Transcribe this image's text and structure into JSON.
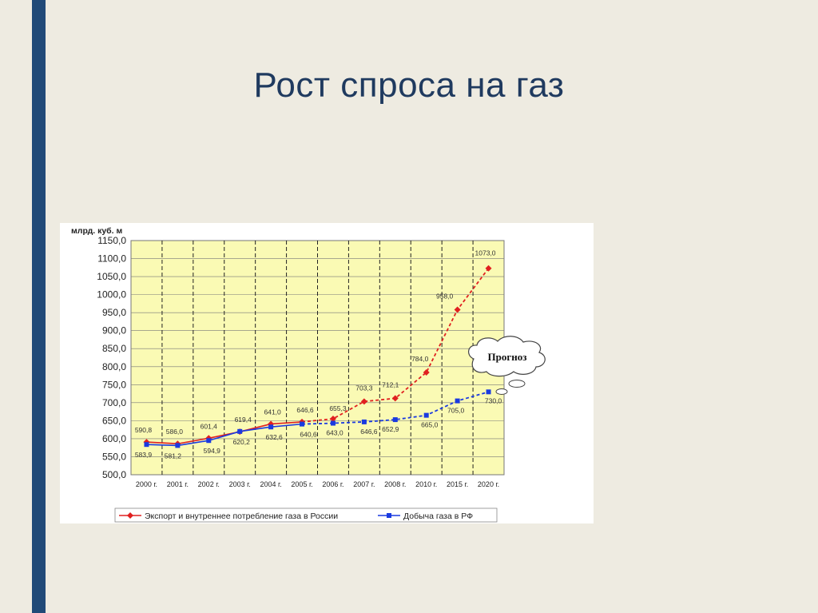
{
  "slide": {
    "title": "Рост спроса на газ"
  },
  "colors": {
    "accent_bar": "#214a78",
    "plot_bg": "#fafab4",
    "series1": "#e02020",
    "series2": "#1a3ae0"
  },
  "chart_data": {
    "type": "line",
    "ylabel": "млрд. куб. м",
    "ylim": [
      500,
      1150
    ],
    "yticks": [
      "500,0",
      "550,0",
      "600,0",
      "650,0",
      "700,0",
      "750,0",
      "800,0",
      "850,0",
      "900,0",
      "950,0",
      "1000,0",
      "1050,0",
      "1100,0",
      "1150,0"
    ],
    "categories": [
      "2000 г.",
      "2001 г.",
      "2002 г.",
      "2003 г.",
      "2004 г.",
      "2005 г.",
      "2006 г.",
      "2007 г.",
      "2008 г.",
      "2010 г.",
      "2015 г.",
      "2020 г."
    ],
    "forecast_start_index": 6,
    "annotation": "Прогноз",
    "legend_position": "bottom",
    "series": [
      {
        "name": "Экспорт и внутреннее потребление газа в России",
        "color": "#e02020",
        "marker": "diamond",
        "values": [
          590.8,
          586.0,
          601.4,
          619.4,
          641.0,
          646.6,
          655.3,
          703.3,
          712.1,
          784.0,
          958.0,
          1073.0
        ],
        "labels": [
          "590,8",
          "586,0",
          "601,4",
          "619,4",
          "641,0",
          "646,6",
          "655,3",
          "703,3",
          "712,1",
          "784,0",
          "958,0",
          "1073,0"
        ]
      },
      {
        "name": "Добыча газа в РФ",
        "color": "#1a3ae0",
        "marker": "square",
        "values": [
          583.9,
          581.2,
          594.9,
          620.2,
          632.6,
          640.6,
          643.0,
          646.6,
          652.9,
          665.0,
          705.0,
          730.0
        ],
        "labels": [
          "583,9",
          "581,2",
          "594,9",
          "620,2",
          "632,6",
          "640,6",
          "643,0",
          "646,6",
          "652,9",
          "665,0",
          "705,0",
          "730,0"
        ]
      }
    ]
  }
}
